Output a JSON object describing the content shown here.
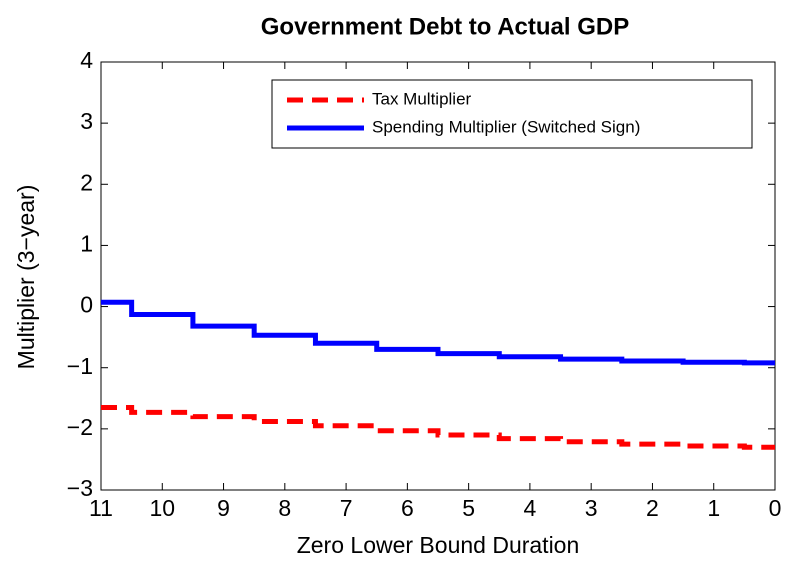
{
  "chart_data": {
    "type": "line",
    "title": "Government Debt to Actual GDP",
    "xlabel": "Zero Lower Bound Duration",
    "ylabel": "Multiplier (3−year)",
    "x": [
      11,
      10.5,
      10.5,
      9.5,
      9.5,
      8.5,
      8.5,
      7.5,
      7.5,
      6.5,
      6.5,
      5.5,
      5.5,
      4.5,
      4.5,
      3.5,
      3.5,
      2.5,
      2.5,
      1.5,
      1.5,
      0.5,
      0.5,
      0
    ],
    "series": [
      {
        "name": "Tax Multiplier",
        "color": "#ff0000",
        "dash": true,
        "values": [
          -1.65,
          -1.65,
          -1.73,
          -1.73,
          -1.8,
          -1.8,
          -1.88,
          -1.88,
          -1.95,
          -1.95,
          -2.03,
          -2.03,
          -2.1,
          -2.1,
          -2.16,
          -2.16,
          -2.21,
          -2.21,
          -2.25,
          -2.25,
          -2.28,
          -2.28,
          -2.3,
          -2.3
        ]
      },
      {
        "name": "Spending Multiplier (Switched Sign)",
        "color": "#0000ff",
        "dash": false,
        "values": [
          0.07,
          0.07,
          -0.13,
          -0.13,
          -0.32,
          -0.32,
          -0.47,
          -0.47,
          -0.6,
          -0.6,
          -0.7,
          -0.7,
          -0.77,
          -0.77,
          -0.82,
          -0.82,
          -0.86,
          -0.86,
          -0.89,
          -0.89,
          -0.91,
          -0.91,
          -0.92,
          -0.92
        ]
      }
    ],
    "xlim": [
      11,
      0
    ],
    "xticks": [
      11,
      10,
      9,
      8,
      7,
      6,
      5,
      4,
      3,
      2,
      1,
      0
    ],
    "ylim": [
      -3,
      4
    ],
    "yticks": [
      {
        "value": -3,
        "label": "−3"
      },
      {
        "value": -2,
        "label": "−2"
      },
      {
        "value": -1,
        "label": "−1"
      },
      0,
      1,
      2,
      3,
      4
    ],
    "legend": "upper right",
    "grid": false
  }
}
